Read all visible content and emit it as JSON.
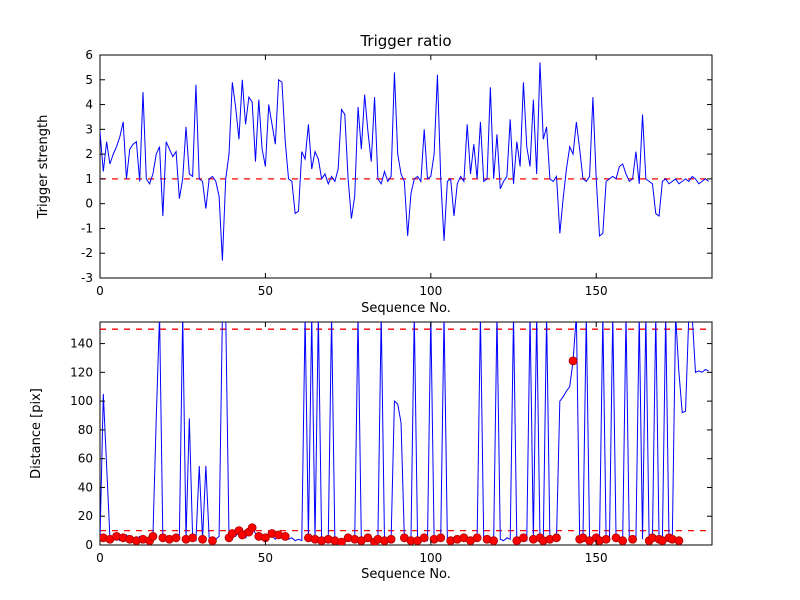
{
  "figure": {
    "background": "#ffffff"
  },
  "chart_data": [
    {
      "type": "line",
      "title": "Trigger ratio",
      "xlabel": "Sequence No.",
      "ylabel": "Trigger strength",
      "xlim": [
        0,
        185
      ],
      "ylim": [
        -3,
        6
      ],
      "xticks": [
        0,
        50,
        100,
        150
      ],
      "yticks": [
        -3,
        -2,
        -1,
        0,
        1,
        2,
        3,
        4,
        5,
        6
      ],
      "grid": false,
      "legend": "none",
      "line_color": "#0000ff",
      "thresholds": [
        {
          "y": 1,
          "color": "#ff0000",
          "style": "dashed"
        }
      ],
      "x_start": 0,
      "x_step": 1,
      "y": [
        2.9,
        1.3,
        2.5,
        1.6,
        2.0,
        2.3,
        2.7,
        3.3,
        1.0,
        2.2,
        2.4,
        2.5,
        0.9,
        4.5,
        1.0,
        0.8,
        1.2,
        2.0,
        2.3,
        -0.5,
        2.5,
        2.2,
        1.9,
        2.1,
        0.2,
        1.0,
        3.1,
        1.2,
        1.1,
        4.8,
        1.0,
        0.9,
        -0.2,
        1.0,
        1.1,
        0.9,
        0.3,
        -2.3,
        1.0,
        2.0,
        4.9,
        3.9,
        2.6,
        5.0,
        3.2,
        4.3,
        4.1,
        1.7,
        4.2,
        2.2,
        1.5,
        4.0,
        3.2,
        2.4,
        5.0,
        4.9,
        2.5,
        1.0,
        0.9,
        -0.4,
        -0.3,
        2.1,
        1.8,
        3.2,
        1.4,
        2.1,
        1.8,
        1.0,
        1.2,
        0.8,
        1.1,
        0.9,
        1.4,
        3.8,
        3.6,
        1.0,
        -0.6,
        0.3,
        3.9,
        2.2,
        4.4,
        2.9,
        1.7,
        4.3,
        1.0,
        0.8,
        1.3,
        0.9,
        1.1,
        5.3,
        2.0,
        1.2,
        0.9,
        -1.3,
        0.4,
        1.0,
        1.1,
        0.9,
        3.0,
        1.0,
        1.1,
        2.0,
        5.2,
        1.0,
        -1.5,
        0.9,
        1.0,
        -0.5,
        0.8,
        1.1,
        0.9,
        3.2,
        1.2,
        2.4,
        1.0,
        3.3,
        0.9,
        1.0,
        4.7,
        1.0,
        2.8,
        0.6,
        0.9,
        1.1,
        3.4,
        0.8,
        2.5,
        1.5,
        4.9,
        2.3,
        1.5,
        4.2,
        1.2,
        5.7,
        2.6,
        3.1,
        1.0,
        0.9,
        1.1,
        -1.2,
        0.2,
        1.4,
        2.3,
        2.0,
        3.3,
        2.2,
        1.0,
        0.9,
        1.1,
        4.3,
        1.0,
        -1.3,
        -1.2,
        0.9,
        1.0,
        1.1,
        1.0,
        1.5,
        1.6,
        1.2,
        0.9,
        1.0,
        2.1,
        0.8,
        3.6,
        1.0,
        0.9,
        0.8,
        -0.4,
        -0.5,
        0.9,
        1.0,
        0.8,
        0.9,
        1.0,
        0.8,
        0.9,
        1.0,
        0.9,
        1.1,
        1.0,
        0.8,
        0.9,
        1.0,
        0.9
      ]
    },
    {
      "type": "line+scatter",
      "title": "",
      "xlabel": "Sequence No.",
      "ylabel": "Distance [pix]",
      "xlim": [
        0,
        185
      ],
      "ylim": [
        0,
        155
      ],
      "xticks": [
        0,
        50,
        100,
        150
      ],
      "yticks": [
        0,
        20,
        40,
        60,
        80,
        100,
        120,
        140
      ],
      "grid": false,
      "legend": "none",
      "line_color": "#0000ff",
      "thresholds": [
        {
          "y": 150,
          "color": "#ff0000",
          "style": "dashed"
        },
        {
          "y": 10,
          "color": "#ff0000",
          "style": "dashed"
        }
      ],
      "x_start": 0,
      "x_step": 1,
      "y": [
        3,
        105,
        55,
        5,
        4,
        6,
        3,
        5,
        7,
        4,
        5,
        3,
        6,
        4,
        5,
        3,
        6,
        88,
        160,
        5,
        4,
        3,
        5,
        4,
        6,
        160,
        4,
        88,
        5,
        3,
        55,
        4,
        55,
        5,
        3,
        4,
        6,
        160,
        160,
        5,
        8,
        6,
        10,
        7,
        5,
        9,
        12,
        8,
        6,
        7,
        5,
        8,
        6,
        4,
        7,
        5,
        6,
        4,
        5,
        3,
        4,
        3,
        160,
        5,
        160,
        4,
        160,
        3,
        5,
        4,
        160,
        3,
        4,
        2,
        3,
        5,
        3,
        4,
        160,
        3,
        4,
        5,
        3,
        2,
        4,
        160,
        3,
        5,
        4,
        100,
        98,
        85,
        5,
        3,
        4,
        160,
        3,
        5,
        4,
        3,
        160,
        4,
        3,
        5,
        160,
        4,
        3,
        2,
        4,
        3,
        5,
        4,
        3,
        5,
        4,
        160,
        3,
        4,
        2,
        3,
        160,
        4,
        3,
        5,
        4,
        160,
        3,
        4,
        5,
        3,
        160,
        4,
        160,
        5,
        3,
        160,
        4,
        3,
        5,
        100,
        103,
        107,
        110,
        128,
        160,
        4,
        5,
        160,
        3,
        4,
        5,
        3,
        160,
        4,
        3,
        160,
        5,
        4,
        3,
        160,
        5,
        4,
        3,
        160,
        4,
        160,
        3,
        5,
        160,
        4,
        3,
        160,
        5,
        4,
        160,
        120,
        92,
        93,
        160,
        160,
        120,
        121,
        120,
        122,
        121
      ],
      "scatter": {
        "color": "#ff0000",
        "x": [
          1,
          3,
          5,
          7,
          9,
          11,
          13,
          15,
          16,
          19,
          21,
          23,
          26,
          28,
          31,
          34,
          39,
          40,
          42,
          43,
          45,
          46,
          48,
          50,
          52,
          54,
          56,
          63,
          65,
          67,
          69,
          71,
          73,
          75,
          77,
          79,
          81,
          83,
          84,
          86,
          88,
          92,
          94,
          96,
          98,
          101,
          103,
          106,
          108,
          110,
          112,
          114,
          117,
          119,
          126,
          128,
          131,
          133,
          134,
          136,
          138,
          143,
          145,
          146,
          148,
          150,
          151,
          153,
          156,
          158,
          161,
          166,
          167,
          169,
          170,
          172,
          173,
          175
        ],
        "y": [
          5,
          4,
          6,
          5,
          4,
          3,
          4,
          3,
          6,
          5,
          4,
          5,
          4,
          5,
          4,
          3,
          5,
          8,
          10,
          7,
          9,
          12,
          6,
          5,
          8,
          7,
          6,
          5,
          4,
          3,
          4,
          3,
          2,
          5,
          4,
          3,
          5,
          2,
          4,
          3,
          4,
          5,
          3,
          3,
          5,
          4,
          5,
          3,
          4,
          5,
          3,
          5,
          4,
          3,
          3,
          5,
          4,
          5,
          3,
          4,
          5,
          128,
          4,
          5,
          3,
          5,
          3,
          4,
          5,
          3,
          4,
          3,
          5,
          4,
          3,
          5,
          4,
          3
        ]
      }
    }
  ]
}
